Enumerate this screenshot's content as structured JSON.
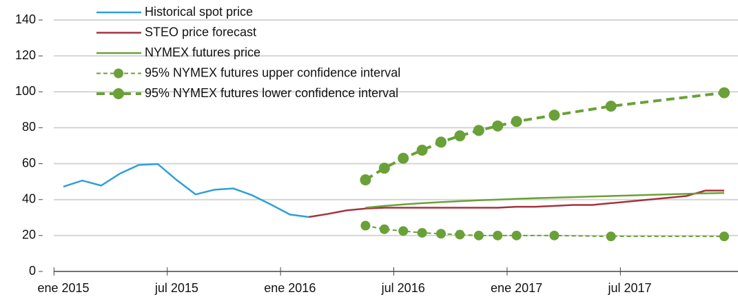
{
  "chart_data": {
    "type": "line",
    "x": [
      "2015-01",
      "2015-02",
      "2015-03",
      "2015-04",
      "2015-05",
      "2015-06",
      "2015-07",
      "2015-08",
      "2015-09",
      "2015-10",
      "2015-11",
      "2015-12",
      "2016-01",
      "2016-02",
      "2016-03",
      "2016-04",
      "2016-05",
      "2016-06",
      "2016-07",
      "2016-08",
      "2016-09",
      "2016-10",
      "2016-11",
      "2016-12",
      "2017-01",
      "2017-02",
      "2017-03",
      "2017-04",
      "2017-05",
      "2017-06",
      "2017-07",
      "2017-08",
      "2017-09",
      "2017-10",
      "2017-11",
      "2017-12"
    ],
    "series": [
      {
        "name": "Historical spot price",
        "color": "#2e9fd8",
        "values": [
          47.2,
          50.6,
          47.8,
          54.5,
          59.3,
          59.8,
          50.9,
          42.9,
          45.5,
          46.2,
          42.4,
          37.2,
          31.7,
          30.3,
          null,
          null,
          null,
          null,
          null,
          null,
          null,
          null,
          null,
          null,
          null,
          null,
          null,
          null,
          null,
          null,
          null,
          null,
          null,
          null,
          null,
          null
        ]
      },
      {
        "name": "STEO price forecast",
        "color": "#a3323f",
        "values": [
          null,
          null,
          null,
          null,
          null,
          null,
          null,
          null,
          null,
          null,
          null,
          null,
          null,
          30.3,
          32,
          34,
          35,
          35.5,
          35.5,
          35.5,
          35.5,
          35.5,
          35.5,
          35.5,
          36,
          36,
          36.5,
          37,
          37,
          38,
          39,
          40,
          41,
          42,
          45,
          45
        ]
      },
      {
        "name": "NYMEX futures price",
        "color": "#6aa038",
        "values": [
          null,
          null,
          null,
          null,
          null,
          null,
          null,
          null,
          null,
          null,
          null,
          null,
          null,
          null,
          null,
          null,
          35.5,
          36.5,
          37.3,
          38,
          38.6,
          39.1,
          39.6,
          40,
          40.4,
          40.8,
          41.1,
          41.4,
          41.7,
          42,
          42.3,
          42.6,
          42.9,
          43.2,
          43.5,
          43.7
        ]
      },
      {
        "name": "95% NYMEX futures upper confidence interval",
        "color": "#6aa038",
        "x": [
          "2016-05",
          "2016-06",
          "2016-07",
          "2016-08",
          "2016-09",
          "2016-10",
          "2016-11",
          "2016-12",
          "2017-01",
          "2017-03",
          "2017-06",
          "2017-12"
        ],
        "values": [
          25.5,
          23.5,
          22.5,
          21.5,
          21,
          20.5,
          20,
          20,
          20,
          20,
          19.5,
          19.5
        ]
      },
      {
        "name": "95% NYMEX futures lower confidence interval",
        "color": "#6aa038",
        "x": [
          "2016-05",
          "2016-06",
          "2016-07",
          "2016-08",
          "2016-09",
          "2016-10",
          "2016-11",
          "2016-12",
          "2017-01",
          "2017-03",
          "2017-06",
          "2017-12"
        ],
        "values": [
          51,
          57.5,
          63,
          67.5,
          72,
          75.5,
          78.5,
          81,
          83.5,
          87,
          92,
          99.5
        ]
      }
    ],
    "ylim": [
      0,
      140
    ],
    "yticks": [
      0,
      20,
      40,
      60,
      80,
      100,
      120,
      140
    ],
    "xticks": [
      {
        "value": "2015-01",
        "label": "ene 2015"
      },
      {
        "value": "2015-07",
        "label": "jul 2015"
      },
      {
        "value": "2016-01",
        "label": "ene 2016"
      },
      {
        "value": "2016-07",
        "label": "jul 2016"
      },
      {
        "value": "2017-01",
        "label": "ene 2017"
      },
      {
        "value": "2017-07",
        "label": "jul 2017"
      }
    ],
    "grid": true,
    "legend": "top-left"
  }
}
